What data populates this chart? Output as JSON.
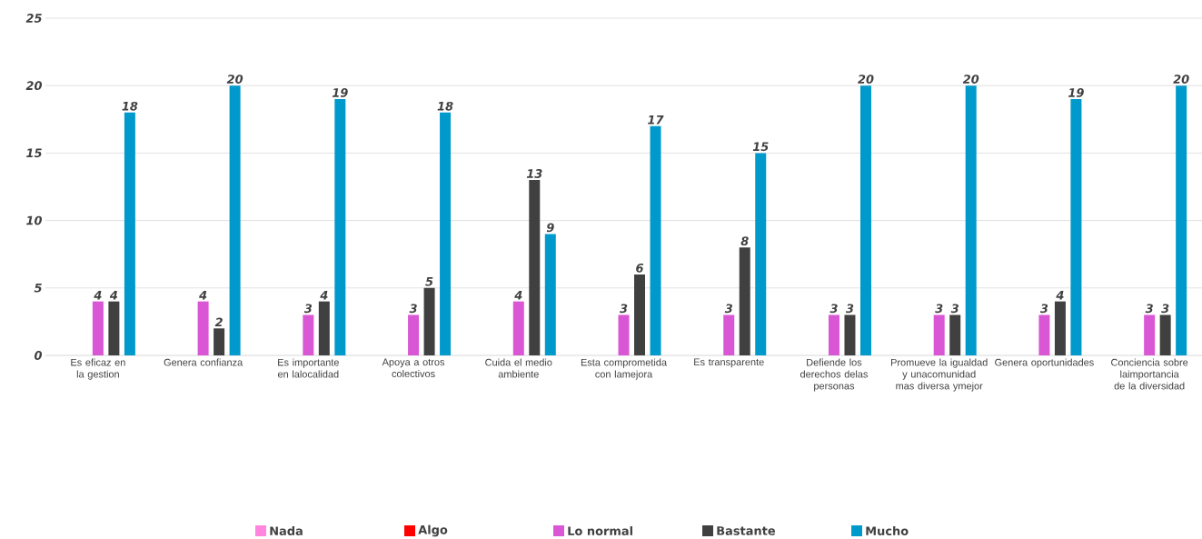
{
  "chart_data": {
    "type": "bar",
    "categories": [
      "Es eficaz en la gestion",
      "Genera confianza",
      "Es importante en lalocalidad",
      "Apoya a otros colectivos",
      "Cuida el medio ambiente",
      "Esta comprometida con lamejora",
      "Es transparente",
      "Defiende los derechos delas personas",
      "Promueve la igualdad y unacomunidad mas diversa ymejor",
      "Genera oportunidades",
      "Conciencia sobre laimportancia de la diversidad"
    ],
    "series": [
      {
        "name": "Nada",
        "color": "#ff85de",
        "values": [
          null,
          null,
          null,
          null,
          null,
          null,
          null,
          null,
          null,
          null,
          null
        ]
      },
      {
        "name": "Algo",
        "color": "#ff0000",
        "values": [
          null,
          null,
          null,
          null,
          null,
          null,
          null,
          null,
          null,
          null,
          null
        ]
      },
      {
        "name": "Lo normal",
        "color": "#d957d4",
        "values": [
          4,
          4,
          3,
          3,
          4,
          3,
          3,
          3,
          3,
          3,
          3
        ]
      },
      {
        "name": "Bastante",
        "color": "#404040",
        "values": [
          4,
          2,
          4,
          5,
          13,
          6,
          8,
          3,
          3,
          4,
          3
        ]
      },
      {
        "name": "Mucho",
        "color": "#0099cc",
        "values": [
          18,
          20,
          19,
          18,
          9,
          17,
          15,
          20,
          20,
          19,
          20
        ]
      }
    ],
    "ylim": [
      0,
      25
    ],
    "yticks": [
      0,
      5,
      10,
      15,
      20,
      25
    ],
    "grid": "y",
    "legend": "bottom",
    "data_labels": true
  }
}
